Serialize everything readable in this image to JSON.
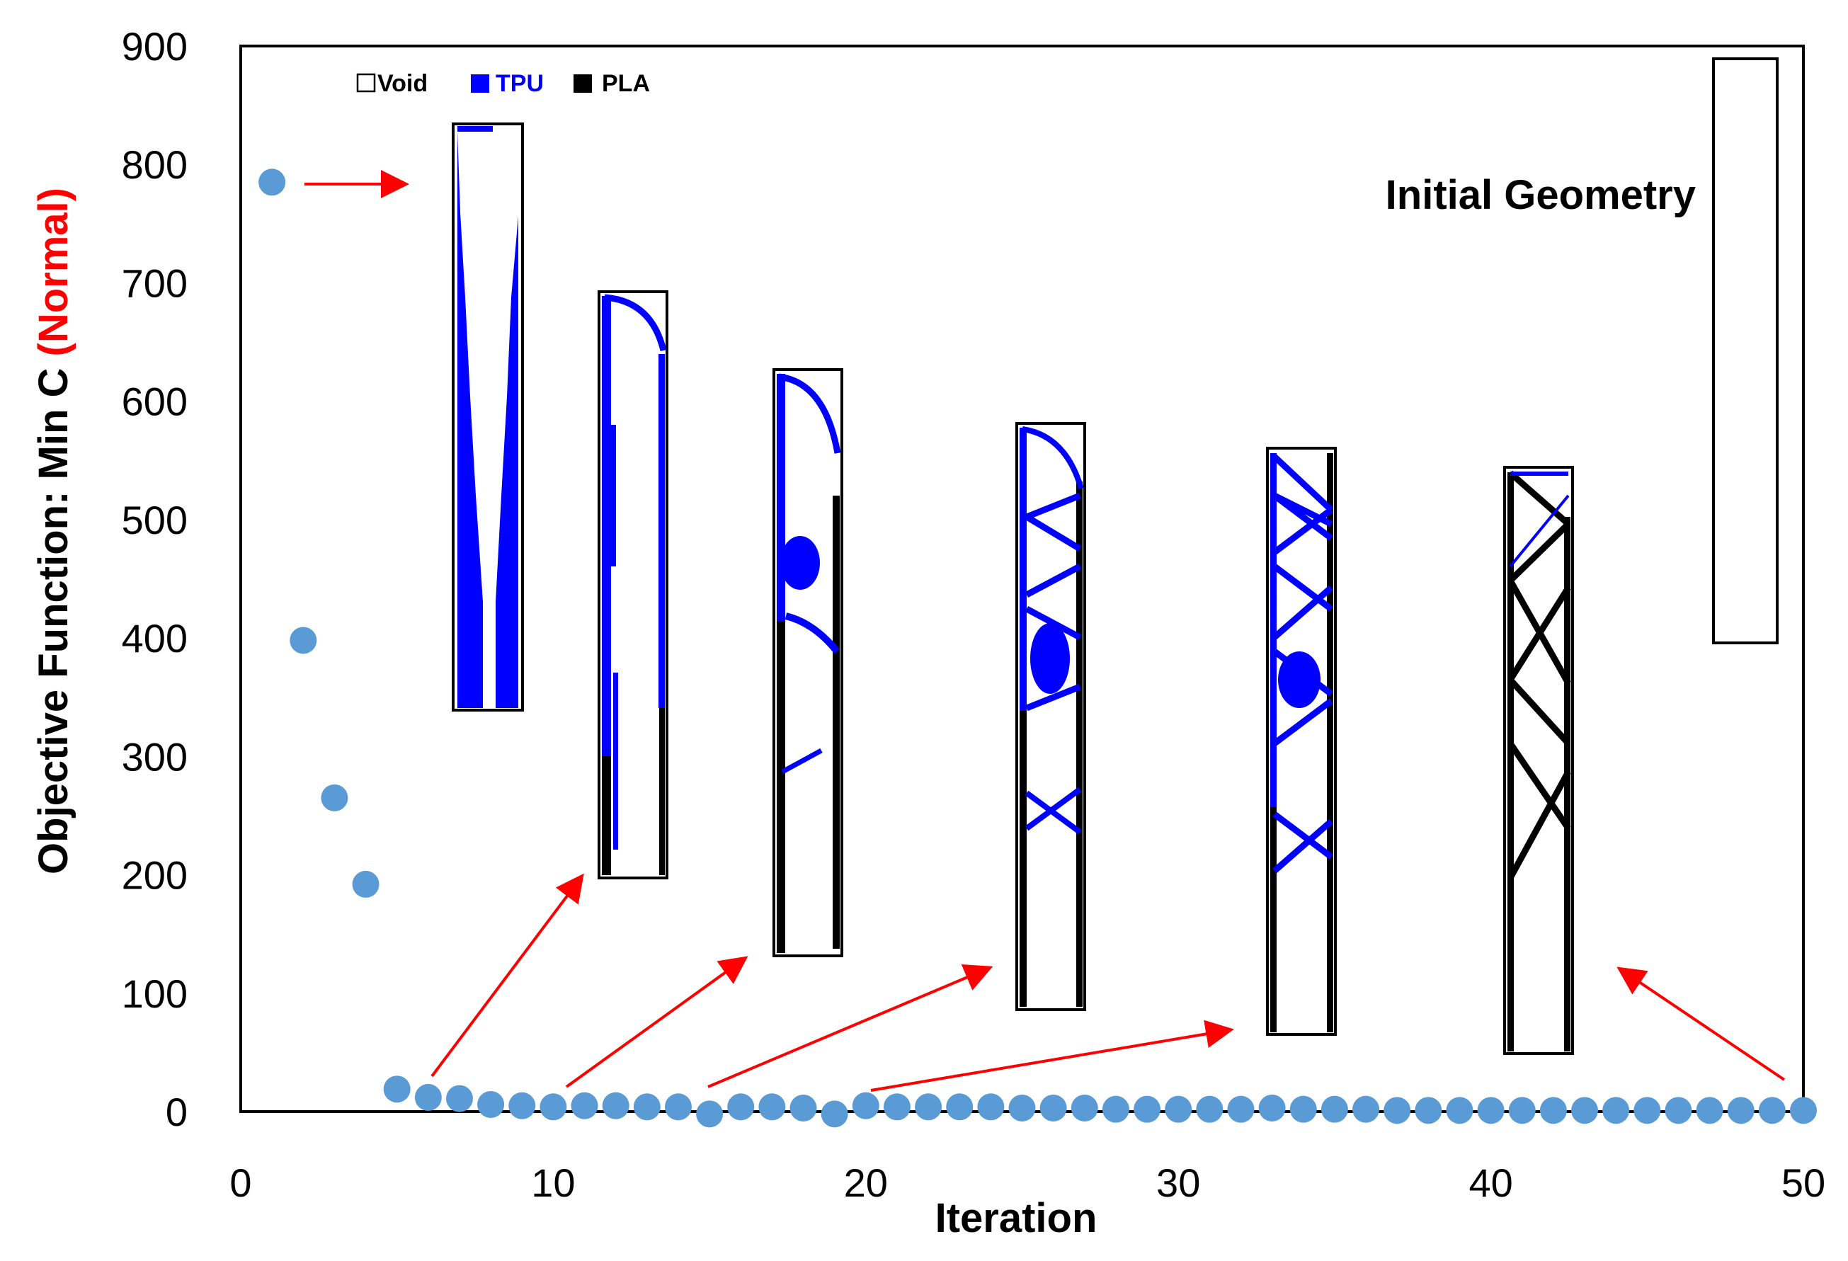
{
  "chart_data": {
    "type": "scatter",
    "title": "",
    "xlabel": "Iteration",
    "ylabel_prefix": "Objective Function: Min C ",
    "ylabel_highlight": "(Normal)",
    "xlim": [
      0,
      50
    ],
    "ylim": [
      0,
      900
    ],
    "xticks": [
      0,
      10,
      20,
      30,
      40,
      50
    ],
    "yticks": [
      0,
      100,
      200,
      300,
      400,
      500,
      600,
      700,
      800,
      900
    ],
    "grid": false,
    "series": [
      {
        "name": "Min C",
        "color": "#5b9bd5",
        "x": [
          1,
          2,
          3,
          4,
          5,
          6,
          7,
          8,
          9,
          10,
          11,
          12,
          13,
          14,
          15,
          16,
          17,
          18,
          19,
          20,
          21,
          22,
          23,
          24,
          25,
          26,
          27,
          28,
          29,
          30,
          31,
          32,
          33,
          34,
          35,
          36,
          37,
          38,
          39,
          40,
          41,
          42,
          43,
          44,
          45,
          46,
          47,
          48,
          49,
          50
        ],
        "y": [
          785,
          398,
          265,
          192,
          19,
          12,
          11,
          6,
          5,
          4,
          5,
          5,
          4,
          4,
          -2,
          4,
          4,
          3,
          -2,
          5,
          4,
          4,
          4,
          4,
          3,
          3,
          3,
          2,
          2,
          2,
          2,
          2,
          3,
          2,
          2,
          2,
          1,
          1,
          1,
          1,
          1,
          1,
          1,
          1,
          1,
          1,
          1,
          1,
          1,
          1
        ]
      }
    ],
    "legend": [
      {
        "label": "Void",
        "color": "#ffffff"
      },
      {
        "label": "TPU",
        "color": "#0000ff"
      },
      {
        "label": "PLA",
        "color": "#000000"
      }
    ],
    "annotations": [
      {
        "text": "Initial Geometry"
      }
    ],
    "colors": {
      "marker": "#5b9bd5",
      "arrow": "#ff0000",
      "tpu": "#0000ff",
      "pla": "#000000",
      "highlight": "#ff0000"
    }
  }
}
